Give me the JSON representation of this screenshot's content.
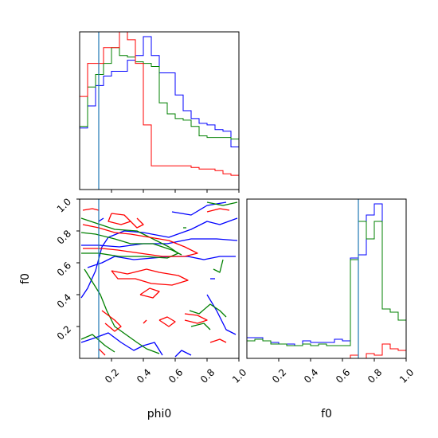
{
  "chart_data": {
    "type": "corner",
    "parameters": [
      "phi0",
      "f0"
    ],
    "xlabels": [
      "phi0",
      "f0"
    ],
    "ylabels": [
      "",
      "f0"
    ],
    "colors": {
      "blue": "#0000ff",
      "green": "#008000",
      "red": "#ff0000",
      "truth": "#1f77b4"
    },
    "truths": {
      "phi0": 0.12,
      "f0": 0.7
    },
    "ranges": {
      "phi0": [
        0,
        1
      ],
      "f0": [
        0,
        1
      ]
    },
    "phi0_ticks": {
      "values": [
        0.2,
        0.4,
        0.6,
        0.8,
        1.0
      ],
      "labels": [
        "0.2",
        "0.4",
        "0.6",
        "0.8",
        "1.0"
      ]
    },
    "f0_ticks": {
      "values": [
        0.2,
        0.4,
        0.6,
        0.8,
        1.0
      ],
      "labels": [
        "0.2",
        "0.4",
        "0.6",
        "0.8",
        "1.0"
      ]
    },
    "hist_phi0": {
      "bin_edges": [
        0,
        0.05,
        0.1,
        0.15,
        0.2,
        0.25,
        0.3,
        0.35,
        0.4,
        0.45,
        0.5,
        0.55,
        0.6,
        0.65,
        0.7,
        0.75,
        0.8,
        0.85,
        0.9,
        0.95,
        1.0
      ],
      "ymax": 1.0,
      "series": [
        {
          "color": "blue",
          "counts": [
            0.39,
            0.53,
            0.66,
            0.72,
            0.75,
            0.75,
            0.82,
            0.85,
            0.97,
            0.85,
            0.74,
            0.74,
            0.6,
            0.5,
            0.45,
            0.42,
            0.41,
            0.38,
            0.37,
            0.27,
            0.15
          ]
        },
        {
          "color": "green",
          "counts": [
            0.4,
            0.65,
            0.73,
            0.8,
            0.9,
            0.85,
            0.84,
            0.81,
            0.8,
            0.78,
            0.55,
            0.48,
            0.45,
            0.44,
            0.4,
            0.34,
            0.33,
            0.33,
            0.33,
            0.32,
            0.15
          ]
        },
        {
          "color": "red",
          "counts": [
            0.59,
            0.8,
            0.8,
            0.9,
            0.9,
            1.0,
            0.95,
            0.8,
            0.41,
            0.15,
            0.15,
            0.15,
            0.15,
            0.15,
            0.14,
            0.13,
            0.13,
            0.12,
            0.1,
            0.09,
            0.26
          ]
        }
      ]
    },
    "hist_f0": {
      "bin_edges": [
        0,
        0.05,
        0.1,
        0.15,
        0.2,
        0.25,
        0.3,
        0.35,
        0.4,
        0.45,
        0.5,
        0.55,
        0.6,
        0.65,
        0.7,
        0.75,
        0.8,
        0.85,
        0.9,
        0.95,
        1.0
      ],
      "ymax": 1.0,
      "series": [
        {
          "color": "blue",
          "counts": [
            0.13,
            0.13,
            0.11,
            0.1,
            0.09,
            0.09,
            0.08,
            0.11,
            0.1,
            0.1,
            0.1,
            0.12,
            0.11,
            0.63,
            0.65,
            0.9,
            0.97,
            0.31,
            0.29,
            0.24,
            0.16
          ]
        },
        {
          "color": "green",
          "counts": [
            0.11,
            0.12,
            0.11,
            0.09,
            0.09,
            0.08,
            0.08,
            0.09,
            0.08,
            0.09,
            0.08,
            0.08,
            0.08,
            0.62,
            0.86,
            0.75,
            0.86,
            0.31,
            0.29,
            0.24,
            0.16
          ]
        },
        {
          "color": "red",
          "counts": [
            0.0,
            0.0,
            0.0,
            0.0,
            0.0,
            0.0,
            0.0,
            0.0,
            0.0,
            0.0,
            0.0,
            0.0,
            0.0,
            0.02,
            0.0,
            0.03,
            0.02,
            0.09,
            0.06,
            0.05,
            0.0
          ]
        }
      ]
    },
    "contours": [
      {
        "color": "blue",
        "paths": [
          [
            [
              0.01,
              0.38
            ],
            [
              0.05,
              0.44
            ],
            [
              0.1,
              0.55
            ],
            [
              0.14,
              0.7
            ],
            [
              0.18,
              0.76
            ],
            [
              0.28,
              0.8
            ],
            [
              0.4,
              0.79
            ],
            [
              0.56,
              0.76
            ],
            [
              0.7,
              0.81
            ],
            [
              0.8,
              0.86
            ],
            [
              0.88,
              0.84
            ],
            [
              0.99,
              0.88
            ]
          ],
          [
            [
              0.01,
              0.71
            ],
            [
              0.12,
              0.71
            ],
            [
              0.25,
              0.7
            ],
            [
              0.4,
              0.72
            ],
            [
              0.55,
              0.72
            ],
            [
              0.7,
              0.75
            ],
            [
              0.86,
              0.75
            ],
            [
              0.99,
              0.74
            ]
          ],
          [
            [
              0.05,
              0.57
            ],
            [
              0.14,
              0.6
            ],
            [
              0.22,
              0.64
            ],
            [
              0.34,
              0.62
            ],
            [
              0.46,
              0.63
            ],
            [
              0.58,
              0.64
            ],
            [
              0.68,
              0.64
            ],
            [
              0.78,
              0.62
            ],
            [
              0.88,
              0.64
            ],
            [
              0.98,
              0.64
            ]
          ],
          [
            [
              0.01,
              0.1
            ],
            [
              0.1,
              0.13
            ],
            [
              0.18,
              0.16
            ],
            [
              0.26,
              0.1
            ],
            [
              0.34,
              0.05
            ],
            [
              0.4,
              0.08
            ],
            [
              0.47,
              0.1
            ],
            [
              0.52,
              0.02
            ]
          ],
          [
            [
              0.6,
              0.01
            ],
            [
              0.64,
              0.05
            ],
            [
              0.7,
              0.02
            ]
          ],
          [
            [
              0.8,
              0.4
            ],
            [
              0.86,
              0.3
            ],
            [
              0.92,
              0.18
            ],
            [
              0.98,
              0.15
            ]
          ],
          [
            [
              0.12,
              0.86
            ],
            [
              0.15,
              0.88
            ]
          ],
          [
            [
              0.82,
              0.5
            ],
            [
              0.85,
              0.5
            ]
          ],
          [
            [
              0.58,
              0.92
            ],
            [
              0.7,
              0.9
            ],
            [
              0.8,
              0.96
            ],
            [
              0.92,
              0.98
            ]
          ]
        ]
      },
      {
        "color": "green",
        "paths": [
          [
            [
              0.01,
              0.88
            ],
            [
              0.1,
              0.85
            ],
            [
              0.22,
              0.81
            ],
            [
              0.36,
              0.8
            ],
            [
              0.46,
              0.75
            ],
            [
              0.56,
              0.7
            ],
            [
              0.62,
              0.66
            ],
            [
              0.55,
              0.63
            ],
            [
              0.4,
              0.64
            ],
            [
              0.25,
              0.64
            ],
            [
              0.12,
              0.66
            ],
            [
              0.01,
              0.66
            ]
          ],
          [
            [
              0.01,
              0.79
            ],
            [
              0.1,
              0.78
            ],
            [
              0.22,
              0.75
            ],
            [
              0.32,
              0.72
            ],
            [
              0.46,
              0.72
            ],
            [
              0.58,
              0.68
            ],
            [
              0.64,
              0.65
            ]
          ],
          [
            [
              0.03,
              0.56
            ],
            [
              0.08,
              0.48
            ],
            [
              0.13,
              0.4
            ],
            [
              0.17,
              0.3
            ],
            [
              0.22,
              0.2
            ],
            [
              0.29,
              0.15
            ],
            [
              0.36,
              0.1
            ],
            [
              0.42,
              0.06
            ],
            [
              0.5,
              0.03
            ]
          ],
          [
            [
              0.01,
              0.12
            ],
            [
              0.08,
              0.15
            ],
            [
              0.16,
              0.08
            ],
            [
              0.22,
              0.04
            ]
          ],
          [
            [
              0.69,
              0.3
            ],
            [
              0.75,
              0.28
            ],
            [
              0.82,
              0.34
            ],
            [
              0.88,
              0.3
            ],
            [
              0.92,
              0.26
            ]
          ],
          [
            [
              0.7,
              0.2
            ],
            [
              0.78,
              0.22
            ],
            [
              0.82,
              0.18
            ]
          ],
          [
            [
              0.84,
              0.56
            ],
            [
              0.88,
              0.54
            ],
            [
              0.9,
              0.62
            ]
          ],
          [
            [
              0.65,
              0.82
            ],
            [
              0.67,
              0.82
            ]
          ],
          [
            [
              0.8,
              0.98
            ],
            [
              0.9,
              0.96
            ],
            [
              0.99,
              0.98
            ]
          ]
        ]
      },
      {
        "color": "red",
        "paths": [
          [
            [
              0.2,
              0.91
            ],
            [
              0.28,
              0.9
            ],
            [
              0.32,
              0.86
            ],
            [
              0.26,
              0.84
            ],
            [
              0.18,
              0.86
            ],
            [
              0.2,
              0.91
            ]
          ],
          [
            [
              0.36,
              0.88
            ],
            [
              0.4,
              0.84
            ],
            [
              0.36,
              0.82
            ],
            [
              0.32,
              0.86
            ]
          ],
          [
            [
              0.02,
              0.84
            ],
            [
              0.12,
              0.82
            ],
            [
              0.22,
              0.79
            ],
            [
              0.32,
              0.78
            ],
            [
              0.44,
              0.76
            ],
            [
              0.56,
              0.74
            ],
            [
              0.66,
              0.7
            ],
            [
              0.74,
              0.66
            ],
            [
              0.66,
              0.64
            ],
            [
              0.52,
              0.64
            ],
            [
              0.38,
              0.66
            ],
            [
              0.24,
              0.68
            ],
            [
              0.14,
              0.69
            ],
            [
              0.02,
              0.69
            ]
          ],
          [
            [
              0.2,
              0.55
            ],
            [
              0.3,
              0.53
            ],
            [
              0.42,
              0.56
            ],
            [
              0.5,
              0.54
            ],
            [
              0.62,
              0.52
            ],
            [
              0.68,
              0.49
            ],
            [
              0.58,
              0.46
            ],
            [
              0.45,
              0.47
            ],
            [
              0.35,
              0.5
            ],
            [
              0.24,
              0.5
            ],
            [
              0.2,
              0.55
            ]
          ],
          [
            [
              0.38,
              0.4
            ],
            [
              0.46,
              0.38
            ],
            [
              0.5,
              0.42
            ],
            [
              0.44,
              0.44
            ],
            [
              0.38,
              0.4
            ]
          ],
          [
            [
              0.14,
              0.3
            ],
            [
              0.22,
              0.24
            ],
            [
              0.26,
              0.2
            ],
            [
              0.22,
              0.17
            ],
            [
              0.16,
              0.22
            ]
          ],
          [
            [
              0.5,
              0.24
            ],
            [
              0.56,
              0.2
            ],
            [
              0.6,
              0.23
            ],
            [
              0.55,
              0.26
            ],
            [
              0.5,
              0.24
            ]
          ],
          [
            [
              0.4,
              0.22
            ],
            [
              0.42,
              0.24
            ]
          ],
          [
            [
              0.66,
              0.28
            ],
            [
              0.74,
              0.27
            ],
            [
              0.8,
              0.24
            ],
            [
              0.74,
              0.22
            ],
            [
              0.66,
              0.24
            ]
          ],
          [
            [
              0.02,
              0.93
            ],
            [
              0.08,
              0.94
            ],
            [
              0.12,
              0.93
            ]
          ],
          [
            [
              0.8,
              0.92
            ],
            [
              0.88,
              0.94
            ],
            [
              0.94,
              0.93
            ]
          ],
          [
            [
              0.82,
              0.1
            ],
            [
              0.88,
              0.12
            ],
            [
              0.92,
              0.1
            ]
          ],
          [
            [
              0.12,
              0.06
            ],
            [
              0.16,
              0.02
            ]
          ]
        ]
      }
    ]
  }
}
